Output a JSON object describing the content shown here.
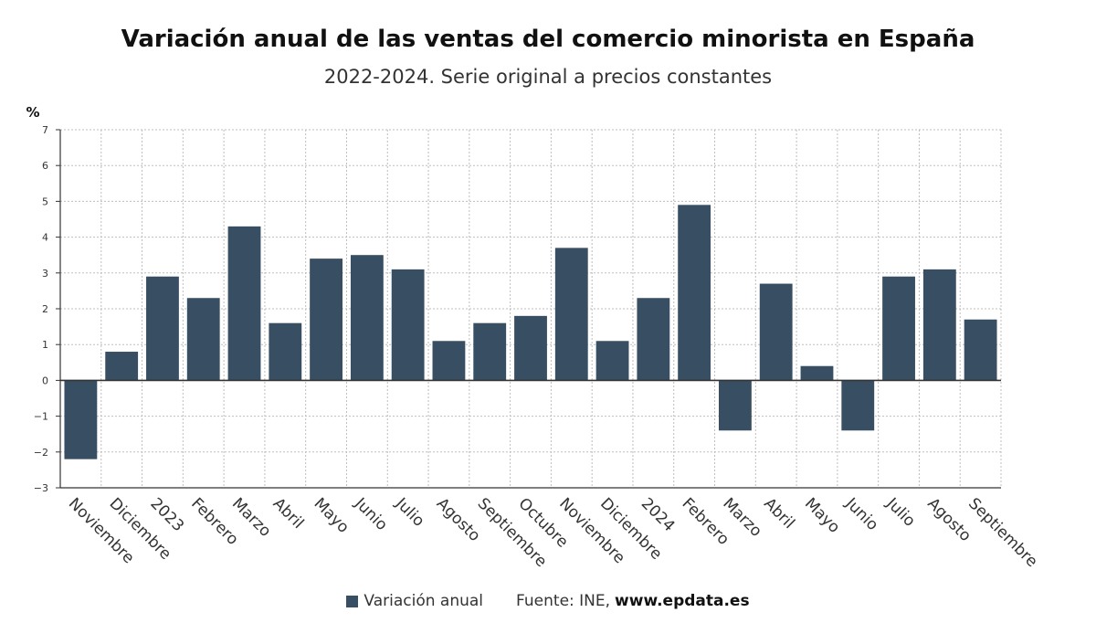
{
  "title": "Variación anual de las ventas del comercio minorista en España",
  "subtitle": "2022-2024. Serie original a precios constantes",
  "bar_color": "#384e62",
  "source": {
    "label": "Fuente: INE,",
    "site": "www.epdata.es"
  },
  "chart_data": {
    "type": "bar",
    "ylabel": "%",
    "ylim": [
      -3,
      7
    ],
    "yticks": [
      "7",
      "6",
      "5",
      "4",
      "3",
      "2",
      "1",
      "0",
      "−1",
      "−2",
      "−3"
    ],
    "ytick_values": [
      7,
      6,
      5,
      4,
      3,
      2,
      1,
      0,
      -1,
      -2,
      -3
    ],
    "grid": true,
    "legend_position": "bottom",
    "categories": [
      "Noviembre",
      "Diciembre",
      "2023",
      "Febrero",
      "Marzo",
      "Abril",
      "Mayo",
      "Junio",
      "Julio",
      "Agosto",
      "Septiembre",
      "Octubre",
      "Noviembre",
      "Diciembre",
      "2024",
      "Febrero",
      "Marzo",
      "Abril",
      "Mayo",
      "Junio",
      "Julio",
      "Agosto",
      "Septiembre"
    ],
    "series": [
      {
        "name": "Variación anual",
        "values": [
          -2.2,
          0.8,
          2.9,
          2.3,
          4.3,
          1.6,
          3.4,
          3.5,
          3.1,
          1.1,
          1.6,
          1.8,
          3.7,
          1.1,
          2.3,
          4.9,
          -1.4,
          2.7,
          0.4,
          -1.4,
          2.9,
          3.1,
          1.7
        ]
      }
    ]
  }
}
